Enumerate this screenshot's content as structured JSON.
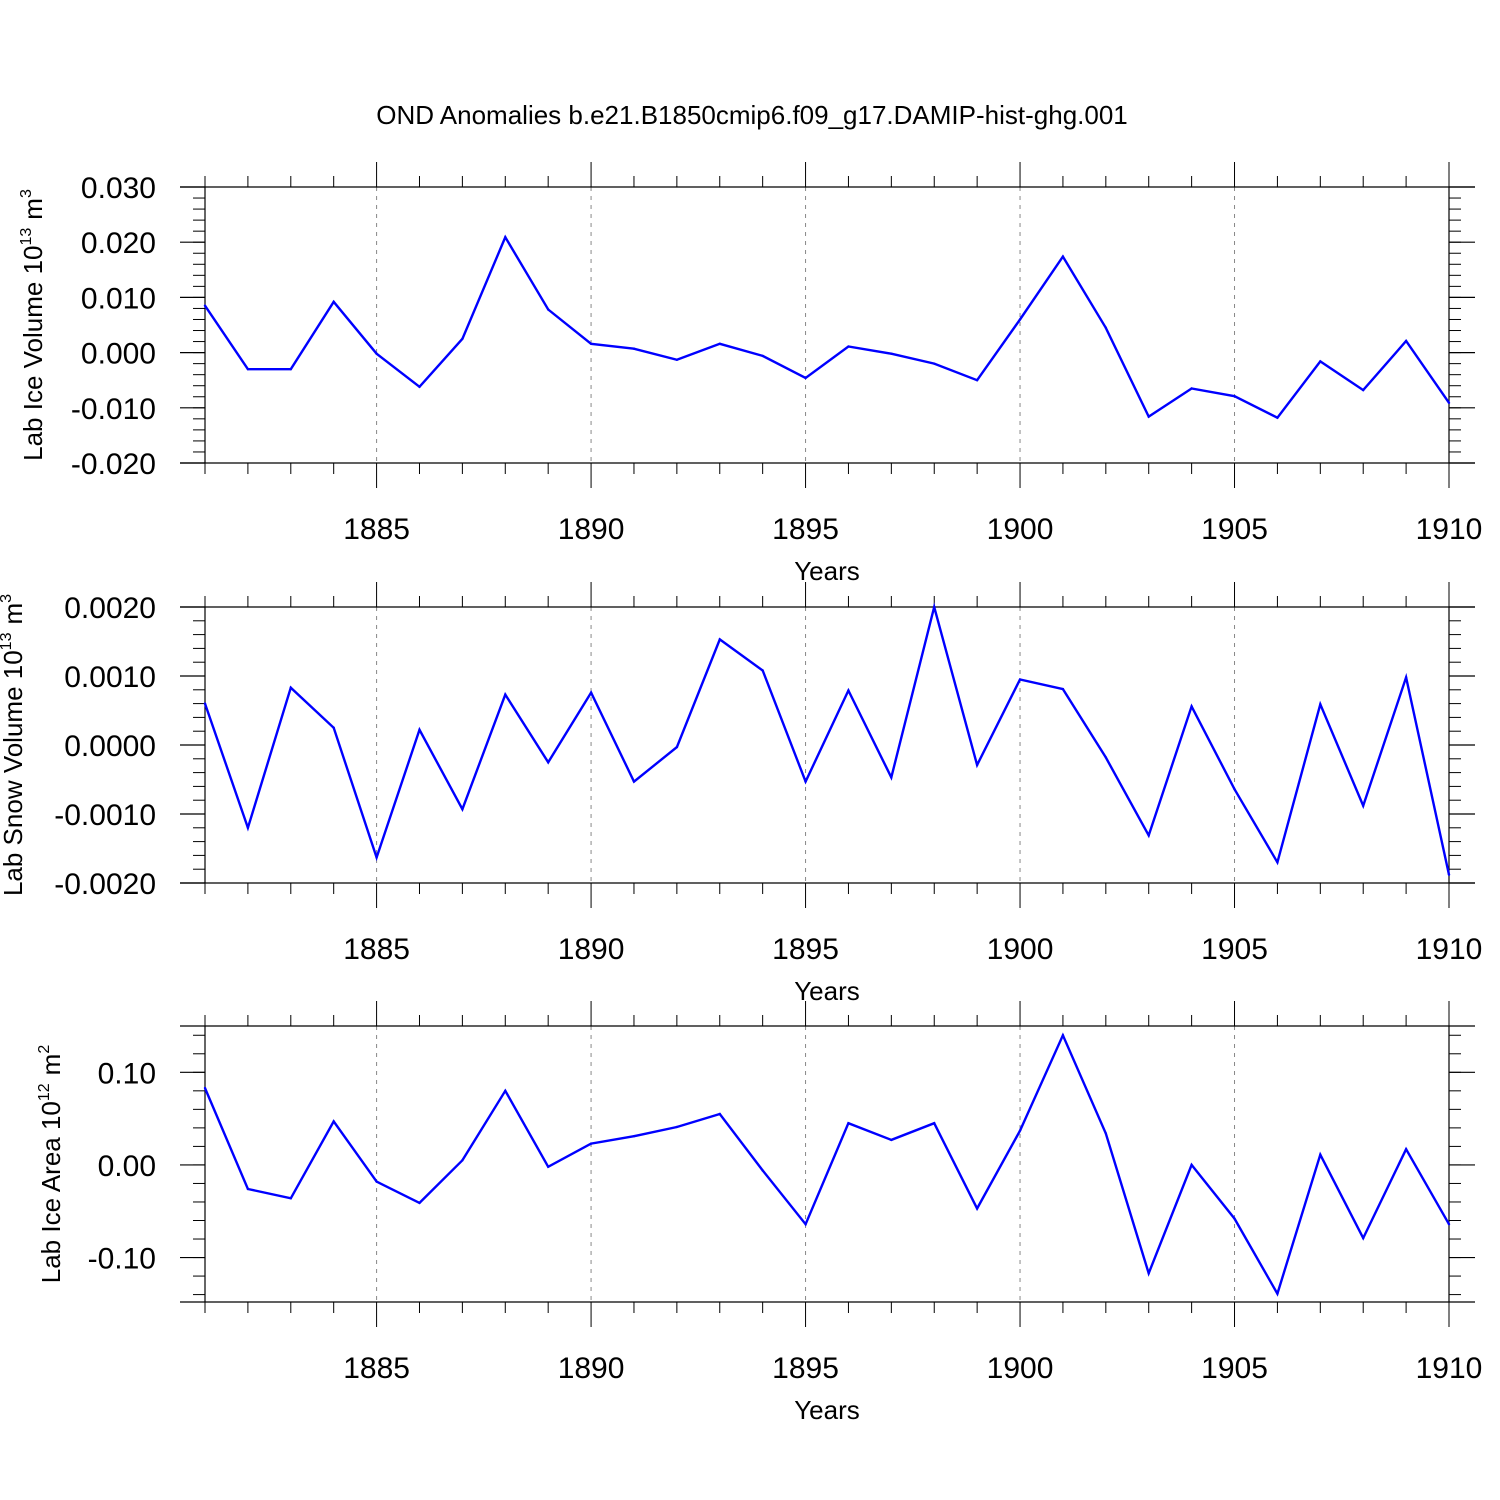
{
  "title": "OND Anomalies b.e21.B1850cmip6.f09_g17.DAMIP-hist-ghg.001",
  "colors": {
    "line": "#0000ff",
    "axis": "#000000",
    "grid": "#888888"
  },
  "chart_data": [
    {
      "type": "line",
      "ylabel_main": "Lab Ice Volume 10",
      "ylabel_exp": "13",
      "ylabel_unit": "m",
      "ylabel_unit_exp": "3",
      "xlabel": "Years",
      "xlim": [
        1881,
        1910
      ],
      "ylim": [
        -0.02,
        0.03
      ],
      "yticks": [
        -0.02,
        -0.01,
        0.0,
        0.01,
        0.02,
        0.03
      ],
      "ytick_labels": [
        "-0.020",
        "-0.010",
        "0.000",
        "0.010",
        "0.020",
        "0.030"
      ],
      "xticks": [
        1885,
        1890,
        1895,
        1900,
        1905,
        1910
      ],
      "xtick_labels": [
        "1885",
        "1890",
        "1895",
        "1900",
        "1905",
        "1910"
      ],
      "series": [
        {
          "name": "Lab Ice Volume",
          "x": [
            1881,
            1882,
            1883,
            1884,
            1885,
            1886,
            1887,
            1888,
            1889,
            1890,
            1891,
            1892,
            1893,
            1894,
            1895,
            1896,
            1897,
            1898,
            1899,
            1900,
            1901,
            1902,
            1903,
            1904,
            1905,
            1906,
            1907,
            1908,
            1909,
            1910
          ],
          "values": [
            0.0085,
            -0.003,
            -0.003,
            0.0092,
            -0.0002,
            -0.0062,
            0.0025,
            0.0209,
            0.0078,
            0.0016,
            0.0007,
            -0.0013,
            0.0016,
            -0.0006,
            -0.0046,
            0.0011,
            -0.0002,
            -0.002,
            -0.005,
            0.006,
            0.0174,
            0.0045,
            -0.0116,
            -0.0065,
            -0.0079,
            -0.0118,
            -0.0016,
            -0.0068,
            0.0021,
            -0.0091
          ]
        }
      ]
    },
    {
      "type": "line",
      "ylabel_main": "Lab Snow Volume 10",
      "ylabel_exp": "13",
      "ylabel_unit": "m",
      "ylabel_unit_exp": "3",
      "xlabel": "Years",
      "xlim": [
        1881,
        1910
      ],
      "ylim": [
        -0.002,
        0.002
      ],
      "yticks": [
        -0.002,
        -0.001,
        0.0,
        0.001,
        0.002
      ],
      "ytick_labels": [
        "-0.0020",
        "-0.0010",
        "0.0000",
        "0.0010",
        "0.0020"
      ],
      "xticks": [
        1885,
        1890,
        1895,
        1900,
        1905,
        1910
      ],
      "xtick_labels": [
        "1885",
        "1890",
        "1895",
        "1900",
        "1905",
        "1910"
      ],
      "series": [
        {
          "name": "Lab Snow Volume",
          "x": [
            1881,
            1882,
            1883,
            1884,
            1885,
            1886,
            1887,
            1888,
            1889,
            1890,
            1891,
            1892,
            1893,
            1894,
            1895,
            1896,
            1897,
            1898,
            1899,
            1900,
            1901,
            1902,
            1903,
            1904,
            1905,
            1906,
            1907,
            1908,
            1909,
            1910
          ],
          "values": [
            0.0006,
            -0.0012,
            0.00083,
            0.00025,
            -0.00163,
            0.00022,
            -0.00093,
            0.00073,
            -0.00025,
            0.00076,
            -0.00053,
            -3e-05,
            0.00153,
            0.00108,
            -0.00053,
            0.00079,
            -0.00047,
            0.002,
            -0.00029,
            0.00095,
            0.00081,
            -0.00018,
            -0.00131,
            0.00056,
            -0.00064,
            -0.0017,
            0.00059,
            -0.00088,
            0.00098,
            -0.00188
          ]
        }
      ]
    },
    {
      "type": "line",
      "ylabel_main": "Lab Ice Area 10",
      "ylabel_exp": "12",
      "ylabel_unit": "m",
      "ylabel_unit_exp": "2",
      "xlabel": "Years",
      "xlim": [
        1881,
        1910
      ],
      "ylim": [
        -0.148,
        0.15
      ],
      "yticks": [
        -0.1,
        0.0,
        0.1
      ],
      "ytick_labels": [
        "-0.10",
        "0.00",
        "0.10"
      ],
      "xticks": [
        1885,
        1890,
        1895,
        1900,
        1905,
        1910
      ],
      "xtick_labels": [
        "1885",
        "1890",
        "1895",
        "1900",
        "1905",
        "1910"
      ],
      "series": [
        {
          "name": "Lab Ice Area",
          "x": [
            1881,
            1882,
            1883,
            1884,
            1885,
            1886,
            1887,
            1888,
            1889,
            1890,
            1891,
            1892,
            1893,
            1894,
            1895,
            1896,
            1897,
            1898,
            1899,
            1900,
            1901,
            1902,
            1903,
            1904,
            1905,
            1906,
            1907,
            1908,
            1909,
            1910
          ],
          "values": [
            0.083,
            -0.026,
            -0.036,
            0.047,
            -0.018,
            -0.041,
            0.005,
            0.08,
            -0.002,
            0.023,
            0.031,
            0.041,
            0.055,
            -0.006,
            -0.064,
            0.045,
            0.027,
            0.045,
            -0.047,
            0.037,
            0.14,
            0.034,
            -0.117,
            0.0,
            -0.058,
            -0.139,
            0.011,
            -0.079,
            0.017,
            -0.064
          ]
        }
      ]
    }
  ]
}
